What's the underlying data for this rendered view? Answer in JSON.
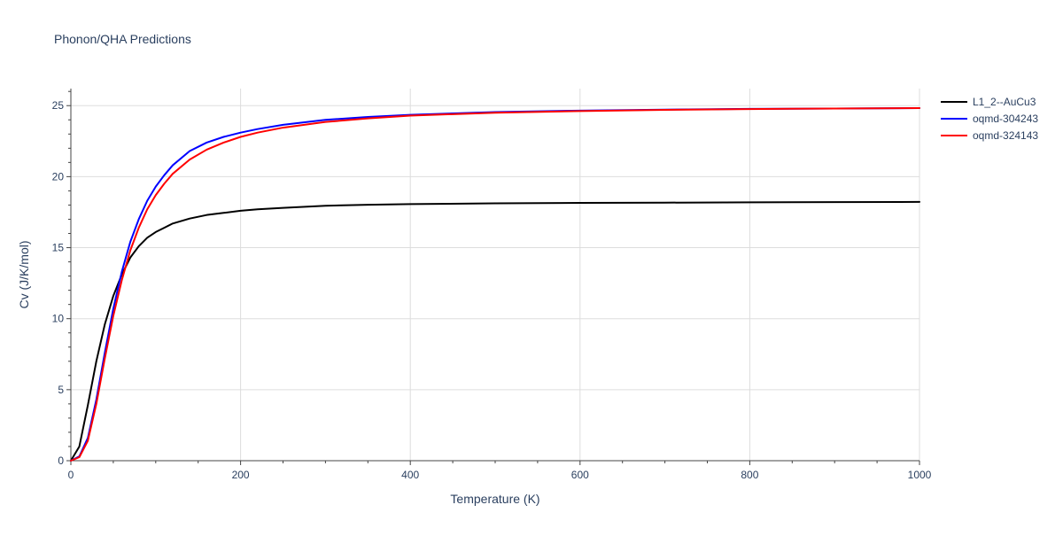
{
  "chart_data": {
    "type": "line",
    "title": "Phonon/QHA Predictions",
    "xlabel": "Temperature (K)",
    "ylabel": "Cv (J/K/mol)",
    "xlim": [
      0,
      1000
    ],
    "ylim": [
      0,
      26.2
    ],
    "x_ticks": [
      0,
      200,
      400,
      600,
      800,
      1000
    ],
    "y_ticks": [
      0,
      5,
      10,
      15,
      20,
      25
    ],
    "grid": true,
    "legend_position": "top-right",
    "series": [
      {
        "name": "L1_2--AuCu3",
        "color": "#000000",
        "x": [
          0,
          10,
          20,
          30,
          40,
          50,
          60,
          70,
          80,
          90,
          100,
          110,
          120,
          140,
          160,
          180,
          200,
          220,
          250,
          300,
          350,
          400,
          500,
          600,
          700,
          800,
          900,
          1000
        ],
        "y": [
          0,
          1.0,
          3.9,
          7.0,
          9.6,
          11.6,
          13.1,
          14.3,
          15.1,
          15.7,
          16.1,
          16.4,
          16.7,
          17.05,
          17.3,
          17.45,
          17.6,
          17.7,
          17.8,
          17.95,
          18.02,
          18.07,
          18.12,
          18.15,
          18.17,
          18.19,
          18.21,
          18.22
        ]
      },
      {
        "name": "oqmd-304243",
        "color": "#0000ff",
        "x": [
          0,
          10,
          20,
          30,
          40,
          50,
          60,
          70,
          80,
          90,
          100,
          110,
          120,
          140,
          160,
          180,
          200,
          220,
          250,
          300,
          350,
          400,
          500,
          600,
          700,
          800,
          900,
          1000
        ],
        "y": [
          0,
          0.3,
          1.6,
          4.3,
          7.6,
          10.7,
          13.3,
          15.4,
          17.0,
          18.3,
          19.3,
          20.1,
          20.8,
          21.8,
          22.4,
          22.8,
          23.1,
          23.35,
          23.65,
          24.0,
          24.2,
          24.35,
          24.55,
          24.65,
          24.72,
          24.77,
          24.8,
          24.83
        ]
      },
      {
        "name": "oqmd-324143",
        "color": "#ff0000",
        "x": [
          0,
          10,
          20,
          30,
          40,
          50,
          60,
          70,
          80,
          90,
          100,
          110,
          120,
          140,
          160,
          180,
          200,
          220,
          250,
          300,
          350,
          400,
          500,
          600,
          700,
          800,
          900,
          1000
        ],
        "y": [
          0,
          0.25,
          1.4,
          4.0,
          7.2,
          10.2,
          12.7,
          14.8,
          16.4,
          17.7,
          18.7,
          19.5,
          20.2,
          21.2,
          21.9,
          22.4,
          22.8,
          23.1,
          23.45,
          23.85,
          24.1,
          24.3,
          24.5,
          24.62,
          24.7,
          24.76,
          24.8,
          24.83
        ]
      }
    ]
  }
}
